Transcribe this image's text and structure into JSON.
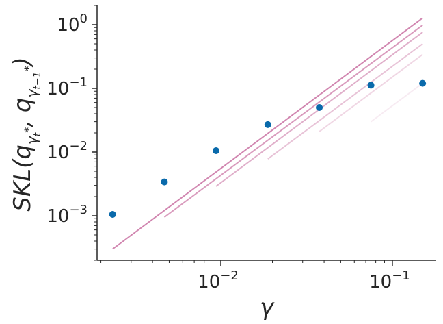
{
  "chart_data": {
    "type": "scatter",
    "title": "",
    "xlabel": "γ",
    "ylabel": "SKL(q_{γ_t^*}, q_{γ_{t-1}^*})",
    "x_scale": "log",
    "y_scale": "log",
    "xlim": [
      0.0019,
      0.18
    ],
    "ylim": [
      0.0002,
      2.0
    ],
    "grid": false,
    "x_ticks": [
      {
        "value": 0.01,
        "base": "10",
        "exp": "−2"
      },
      {
        "value": 0.1,
        "base": "10",
        "exp": "−1"
      }
    ],
    "y_ticks": [
      {
        "value": 0.001,
        "base": "10",
        "exp": "−3"
      },
      {
        "value": 0.01,
        "base": "10",
        "exp": "−2"
      },
      {
        "value": 0.1,
        "base": "10",
        "exp": "−1"
      },
      {
        "value": 1,
        "base": "10",
        "exp": "0"
      }
    ],
    "points": {
      "color": "#0a6aab",
      "x": [
        0.00234,
        0.00469,
        0.00938,
        0.0188,
        0.0375,
        0.075,
        0.15
      ],
      "y": [
        0.00105,
        0.0034,
        0.0105,
        0.027,
        0.05,
        0.112,
        0.12
      ]
    },
    "lines": [
      {
        "x": [
          0.00234,
          0.15
        ],
        "y": [
          0.0003,
          1.27
        ],
        "color": "#cc79a7",
        "opacity": 0.9
      },
      {
        "x": [
          0.00469,
          0.15
        ],
        "y": [
          0.00095,
          0.98
        ],
        "color": "#cc79a7",
        "opacity": 0.75
      },
      {
        "x": [
          0.00938,
          0.15
        ],
        "y": [
          0.0029,
          0.76
        ],
        "color": "#cc79a7",
        "opacity": 0.6
      },
      {
        "x": [
          0.0188,
          0.15
        ],
        "y": [
          0.0078,
          0.5
        ],
        "color": "#cc79a7",
        "opacity": 0.45
      },
      {
        "x": [
          0.0375,
          0.15
        ],
        "y": [
          0.021,
          0.34
        ],
        "color": "#cc79a7",
        "opacity": 0.3
      },
      {
        "x": [
          0.075,
          0.15
        ],
        "y": [
          0.03,
          0.12
        ],
        "color": "#cc79a7",
        "opacity": 0.15
      }
    ]
  }
}
